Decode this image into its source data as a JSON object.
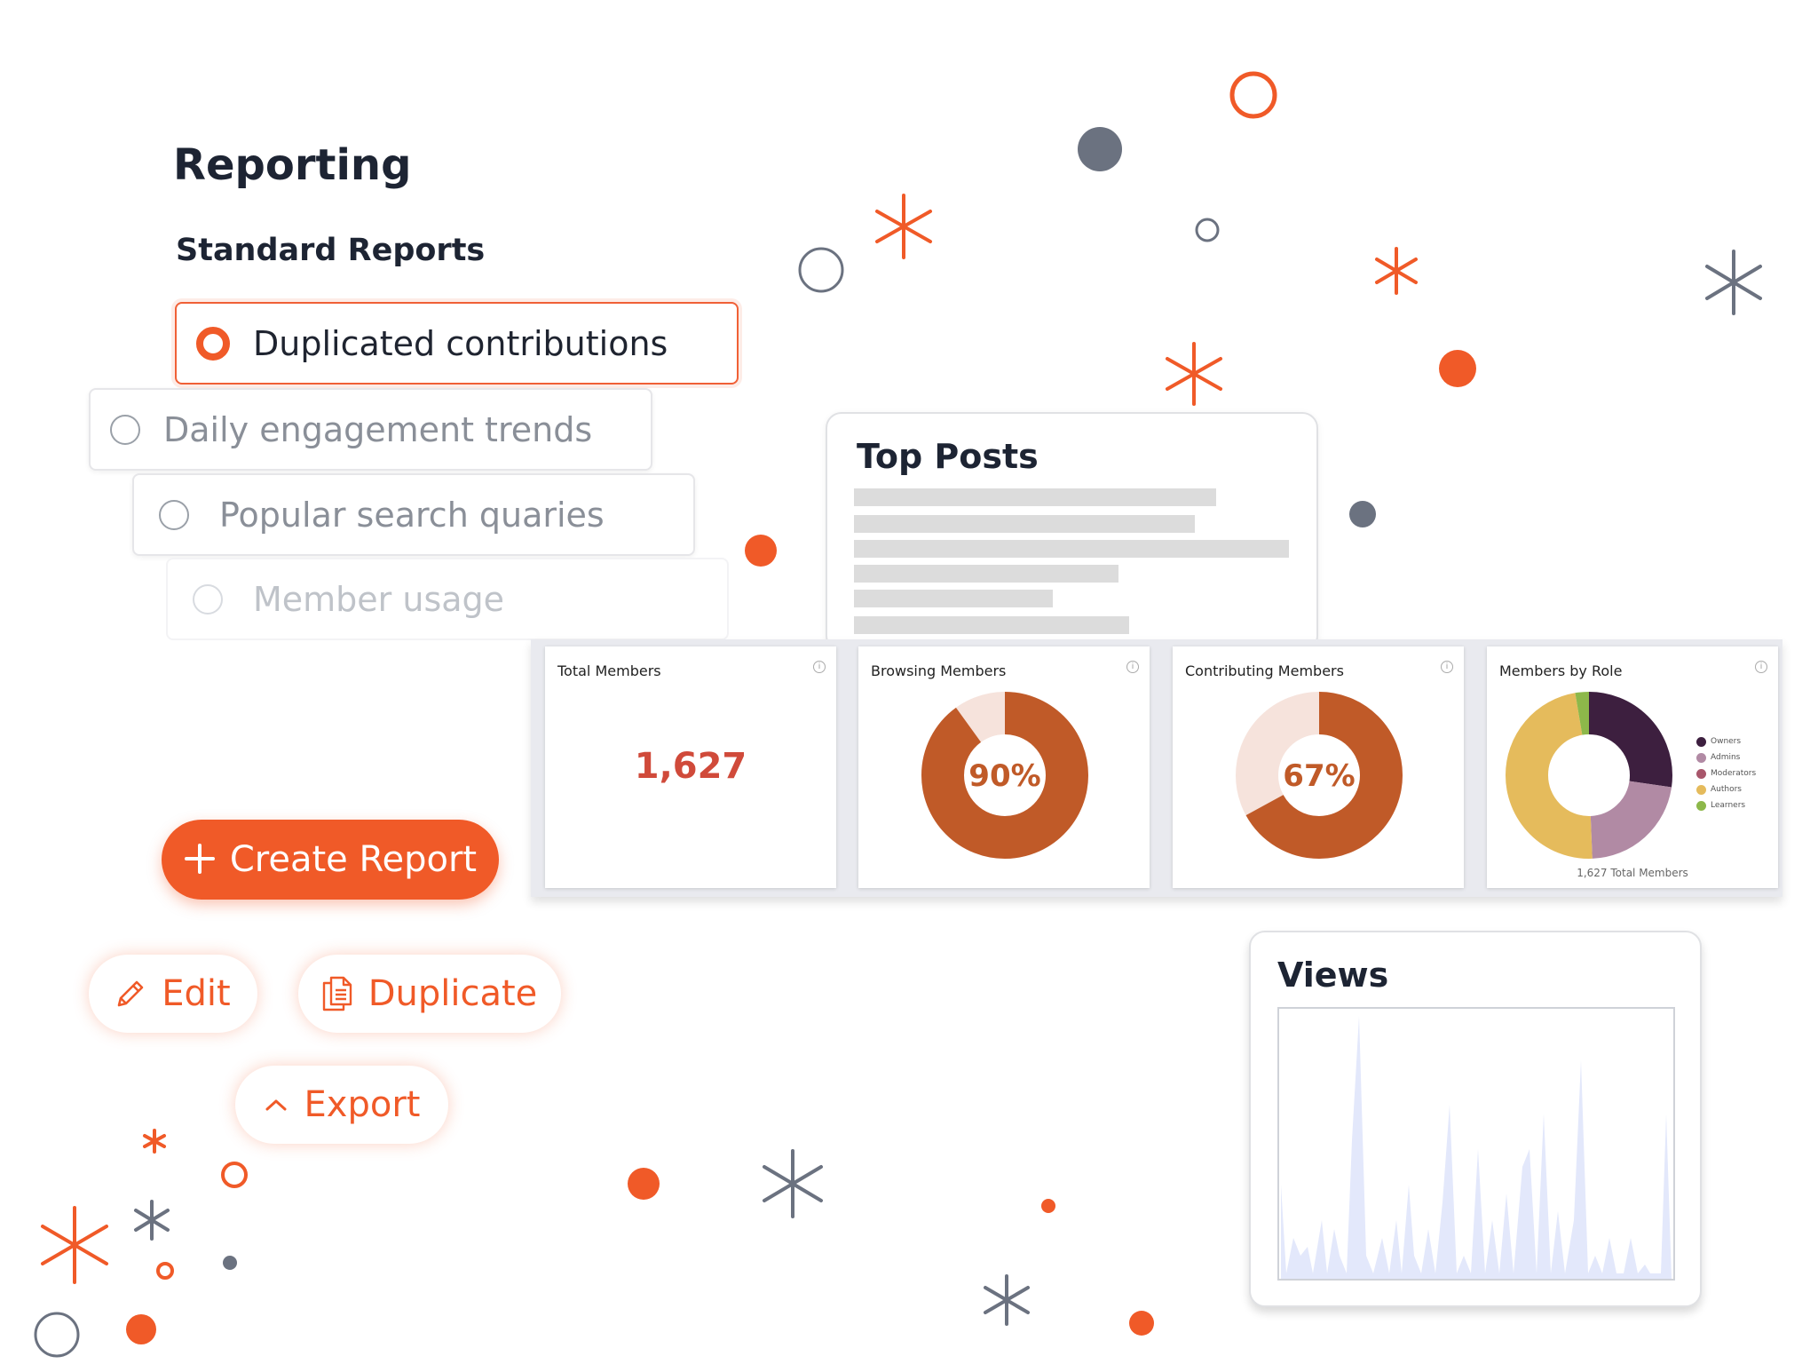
{
  "page": {
    "title": "Reporting",
    "section": "Standard Reports"
  },
  "report_options": [
    {
      "label": "Duplicated contributions",
      "selected": true
    },
    {
      "label": "Daily engagement trends",
      "selected": false
    },
    {
      "label": "Popular search quaries",
      "selected": false
    },
    {
      "label": "Member usage",
      "selected": false
    }
  ],
  "actions": {
    "create": "Create Report",
    "edit": "Edit",
    "duplicate": "Duplicate",
    "export": "Export"
  },
  "top_posts": {
    "title": "Top Posts"
  },
  "widgets": {
    "total_members": {
      "title": "Total Members",
      "value": "1,627"
    },
    "browsing_members": {
      "title": "Browsing Members",
      "percent_label": "90%",
      "percent": 0.9
    },
    "contributing_members": {
      "title": "Contributing Members",
      "percent_label": "67%",
      "percent": 0.67
    },
    "members_by_role": {
      "title": "Members by Role",
      "footer": "1,627  Total Members",
      "legend": [
        "Owners",
        "Admins",
        "Moderators",
        "Authors",
        "Learners"
      ],
      "colors": [
        "#3d1f3f",
        "#b18aa4",
        "#a8566b",
        "#e5bb5c",
        "#8db84a"
      ]
    }
  },
  "views": {
    "title": "Views"
  },
  "colors": {
    "accent": "#f05a28",
    "donut": "#c05a28",
    "donut_bg": "#f6e3dc",
    "area": "#e3e8fb"
  }
}
